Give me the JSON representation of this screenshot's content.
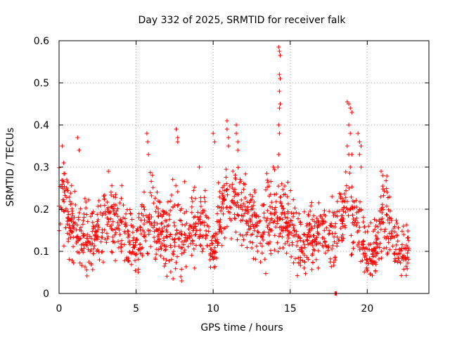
{
  "chart_data": {
    "type": "scatter",
    "title": "Day 332 of 2025, SRMTID for receiver falk",
    "xlabel": "GPS time / hours",
    "ylabel": "SRMTID / TECUs",
    "xlim": [
      0,
      24
    ],
    "ylim": [
      0,
      0.6
    ],
    "xticks": [
      0,
      5,
      10,
      15,
      20
    ],
    "xtick_labels": [
      "0",
      "5",
      "10",
      "15",
      "20"
    ],
    "yticks": [
      0,
      0.1,
      0.2,
      0.3,
      0.4,
      0.5,
      0.6
    ],
    "ytick_labels": [
      "0",
      "0.1",
      "0.2",
      "0.3",
      "0.4",
      "0.5",
      "0.6"
    ],
    "grid": true,
    "marker": "plus",
    "color": "#ff0000",
    "series": [
      {
        "name": "SRMTID",
        "x_start": 0.0,
        "x_end": 22.75,
        "profile": [
          [
            0.0,
            0.21,
            0.05
          ],
          [
            0.3,
            0.23,
            0.05
          ],
          [
            0.7,
            0.16,
            0.04
          ],
          [
            1.2,
            0.15,
            0.05
          ],
          [
            1.5,
            0.14,
            0.04
          ],
          [
            2.0,
            0.12,
            0.04
          ],
          [
            2.5,
            0.14,
            0.04
          ],
          [
            3.0,
            0.16,
            0.05
          ],
          [
            3.5,
            0.18,
            0.04
          ],
          [
            4.0,
            0.17,
            0.04
          ],
          [
            4.5,
            0.14,
            0.04
          ],
          [
            5.0,
            0.11,
            0.03
          ],
          [
            5.5,
            0.16,
            0.05
          ],
          [
            6.0,
            0.17,
            0.05
          ],
          [
            6.5,
            0.15,
            0.04
          ],
          [
            7.0,
            0.14,
            0.04
          ],
          [
            7.5,
            0.15,
            0.05
          ],
          [
            8.0,
            0.14,
            0.04
          ],
          [
            8.5,
            0.16,
            0.04
          ],
          [
            9.0,
            0.16,
            0.04
          ],
          [
            9.5,
            0.17,
            0.04
          ],
          [
            10.0,
            0.09,
            0.03
          ],
          [
            10.5,
            0.19,
            0.05
          ],
          [
            11.0,
            0.23,
            0.05
          ],
          [
            11.5,
            0.22,
            0.04
          ],
          [
            12.0,
            0.2,
            0.04
          ],
          [
            12.5,
            0.17,
            0.04
          ],
          [
            13.0,
            0.14,
            0.04
          ],
          [
            13.5,
            0.18,
            0.05
          ],
          [
            14.0,
            0.2,
            0.04
          ],
          [
            14.5,
            0.19,
            0.05
          ],
          [
            15.0,
            0.17,
            0.04
          ],
          [
            15.5,
            0.13,
            0.04
          ],
          [
            16.0,
            0.13,
            0.04
          ],
          [
            16.5,
            0.14,
            0.04
          ],
          [
            17.0,
            0.15,
            0.04
          ],
          [
            17.5,
            0.12,
            0.04
          ],
          [
            18.0,
            0.16,
            0.04
          ],
          [
            18.5,
            0.2,
            0.04
          ],
          [
            19.0,
            0.2,
            0.05
          ],
          [
            19.5,
            0.17,
            0.04
          ],
          [
            20.0,
            0.1,
            0.03
          ],
          [
            20.5,
            0.1,
            0.03
          ],
          [
            21.0,
            0.17,
            0.05
          ],
          [
            21.5,
            0.17,
            0.04
          ],
          [
            22.0,
            0.11,
            0.03
          ],
          [
            22.75,
            0.1,
            0.03
          ]
        ],
        "spikes": [
          [
            0.2,
            0.35
          ],
          [
            0.3,
            0.31
          ],
          [
            0.5,
            0.27
          ],
          [
            1.2,
            0.37
          ],
          [
            1.3,
            0.34
          ],
          [
            3.2,
            0.29
          ],
          [
            5.7,
            0.38
          ],
          [
            5.75,
            0.36
          ],
          [
            5.8,
            0.33
          ],
          [
            7.6,
            0.39
          ],
          [
            7.7,
            0.37
          ],
          [
            7.7,
            0.36
          ],
          [
            9.1,
            0.3
          ],
          [
            10.0,
            0.38
          ],
          [
            10.1,
            0.36
          ],
          [
            10.9,
            0.41
          ],
          [
            10.9,
            0.39
          ],
          [
            11.0,
            0.37
          ],
          [
            11.0,
            0.35
          ],
          [
            11.5,
            0.4
          ],
          [
            11.5,
            0.38
          ],
          [
            11.6,
            0.36
          ],
          [
            11.6,
            0.34
          ],
          [
            13.9,
            0.3
          ],
          [
            14.25,
            0.585
          ],
          [
            14.3,
            0.575
          ],
          [
            14.35,
            0.565
          ],
          [
            14.3,
            0.52
          ],
          [
            14.35,
            0.51
          ],
          [
            14.3,
            0.48
          ],
          [
            14.35,
            0.45
          ],
          [
            14.3,
            0.44
          ],
          [
            14.25,
            0.4
          ],
          [
            14.3,
            0.38
          ],
          [
            14.25,
            0.33
          ],
          [
            14.2,
            0.3
          ],
          [
            18.7,
            0.455
          ],
          [
            18.8,
            0.45
          ],
          [
            18.9,
            0.44
          ],
          [
            19.0,
            0.43
          ],
          [
            18.8,
            0.4
          ],
          [
            18.9,
            0.38
          ],
          [
            18.7,
            0.35
          ],
          [
            18.8,
            0.33
          ],
          [
            19.0,
            0.33
          ],
          [
            18.9,
            0.3
          ],
          [
            19.4,
            0.38
          ],
          [
            19.5,
            0.36
          ],
          [
            19.6,
            0.35
          ],
          [
            19.5,
            0.33
          ],
          [
            19.6,
            0.3
          ],
          [
            20.9,
            0.29
          ],
          [
            21.0,
            0.28
          ]
        ],
        "low_points": [
          [
            7.4,
            0.035
          ],
          [
            7.9,
            0.04
          ],
          [
            7.95,
            0.03
          ],
          [
            17.9,
            0.0
          ],
          [
            18.0,
            0.0
          ],
          [
            17.95,
            0.0
          ]
        ]
      }
    ]
  }
}
